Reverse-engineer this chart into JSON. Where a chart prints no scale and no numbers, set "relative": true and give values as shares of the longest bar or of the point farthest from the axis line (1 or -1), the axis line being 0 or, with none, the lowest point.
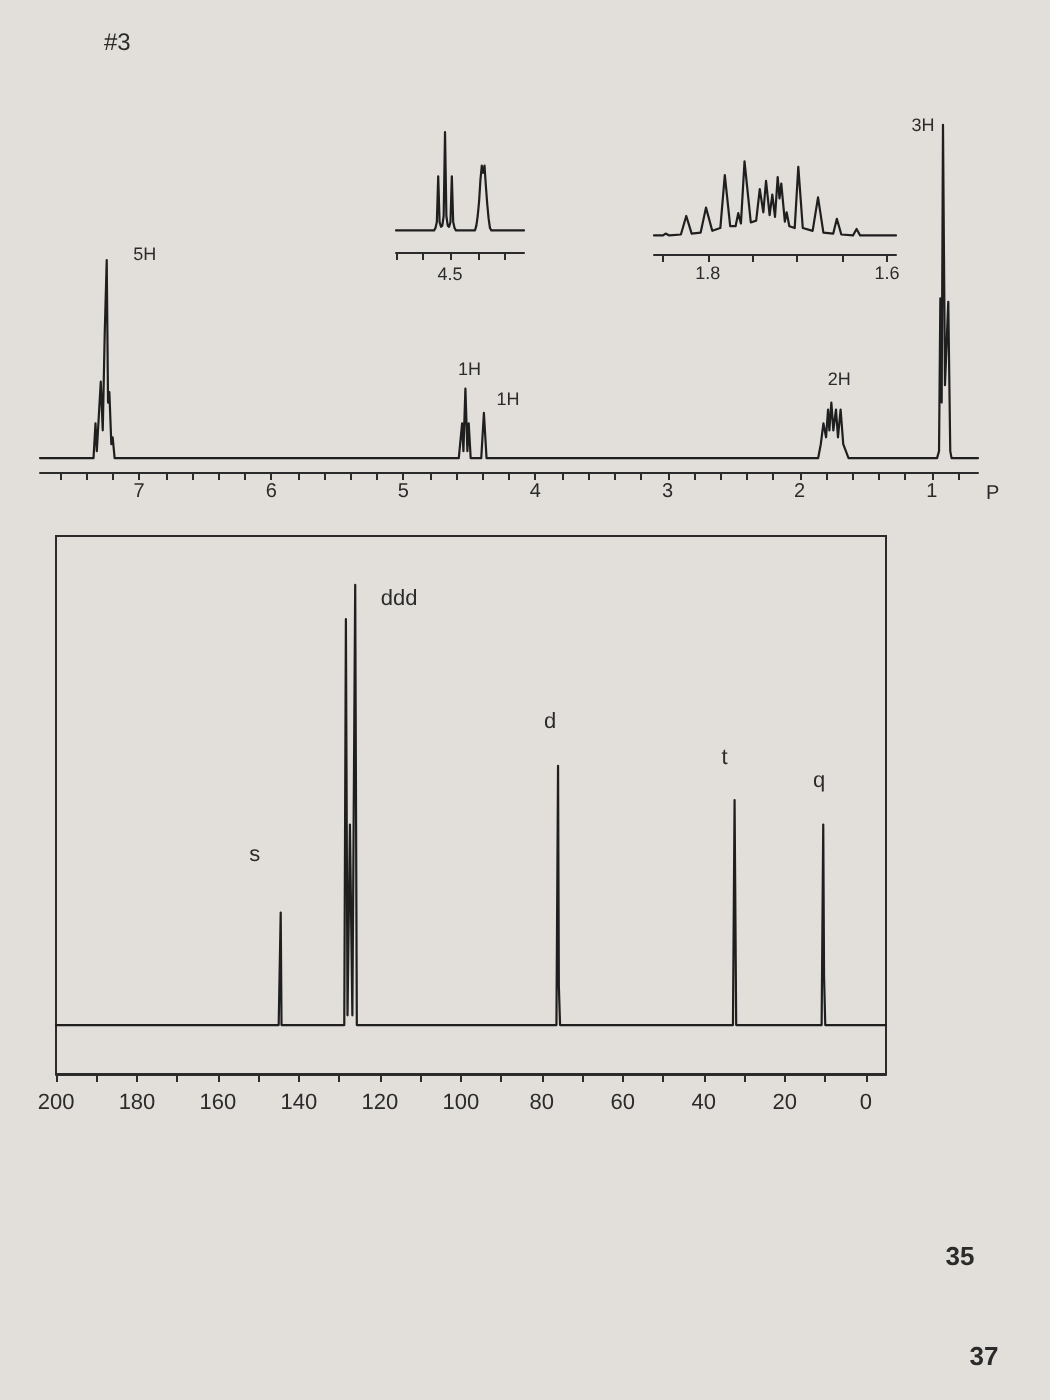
{
  "chart_data": [
    {
      "type": "line",
      "title": "#3",
      "relative": true,
      "marker": "none",
      "xlabel": "P",
      "xlim": [
        7.75,
        0.65
      ],
      "xticks": [
        {
          "value": 7.6,
          "label": null
        },
        {
          "value": 7.4,
          "label": null
        },
        {
          "value": 7.2,
          "label": null
        },
        7,
        {
          "value": 6.8,
          "label": null
        },
        {
          "value": 6.6,
          "label": null
        },
        {
          "value": 6.4,
          "label": null
        },
        {
          "value": 6.2,
          "label": null
        },
        6,
        {
          "value": 5.8,
          "label": null
        },
        {
          "value": 5.6,
          "label": null
        },
        {
          "value": 5.4,
          "label": null
        },
        {
          "value": 5.2,
          "label": null
        },
        5,
        {
          "value": 4.8,
          "label": null
        },
        {
          "value": 4.6,
          "label": null
        },
        {
          "value": 4.4,
          "label": null
        },
        {
          "value": 4.2,
          "label": null
        },
        4,
        {
          "value": 3.8,
          "label": null
        },
        {
          "value": 3.6,
          "label": null
        },
        {
          "value": 3.4,
          "label": null
        },
        {
          "value": 3.2,
          "label": null
        },
        3,
        {
          "value": 2.8,
          "label": null
        },
        {
          "value": 2.6,
          "label": null
        },
        {
          "value": 2.4,
          "label": null
        },
        {
          "value": 2.2,
          "label": null
        },
        2,
        {
          "value": 1.8,
          "label": null
        },
        {
          "value": 1.6,
          "label": null
        },
        {
          "value": 1.4,
          "label": null
        },
        {
          "value": 1.2,
          "label": null
        },
        1,
        {
          "value": 0.8,
          "label": null
        }
      ],
      "x": [
        7.75,
        7.345,
        7.33,
        7.32,
        7.29,
        7.275,
        7.26,
        7.245,
        7.235,
        7.225,
        7.21,
        7.2,
        7.185,
        4.58,
        4.555,
        4.545,
        4.53,
        4.515,
        4.505,
        4.49,
        4.41,
        4.39,
        4.37,
        1.86,
        1.84,
        1.82,
        1.8,
        1.785,
        1.775,
        1.76,
        1.745,
        1.725,
        1.71,
        1.69,
        1.67,
        1.65,
        1.63,
        0.96,
        0.945,
        0.935,
        0.925,
        0.915,
        0.9,
        0.875,
        0.86,
        0.85,
        0.65
      ],
      "series": [
        {
          "color": "#1f1f1f",
          "values": [
            0.04,
            0.04,
            0.14,
            0.06,
            0.26,
            0.12,
            0.4,
            0.61,
            0.2,
            0.23,
            0.08,
            0.1,
            0.04,
            0.04,
            0.14,
            0.06,
            0.24,
            0.06,
            0.14,
            0.04,
            0.04,
            0.17,
            0.04,
            0.04,
            0.08,
            0.14,
            0.1,
            0.18,
            0.12,
            0.2,
            0.12,
            0.18,
            0.1,
            0.18,
            0.08,
            0.06,
            0.04,
            0.04,
            0.06,
            0.5,
            0.2,
            1,
            0.25,
            0.49,
            0.06,
            0.04,
            0.04
          ]
        }
      ],
      "annotations": [
        {
          "text": "5H",
          "x": 7.245,
          "y": 0.61
        },
        {
          "text": "1H",
          "x": 4.53,
          "y": 0.24
        },
        {
          "text": "1H",
          "x": 4.39,
          "y": 0.17
        },
        {
          "text": "2H",
          "x": 1.76,
          "y": 0.2
        },
        {
          "text": "3H",
          "x": 0.915,
          "y": 1
        }
      ]
    },
    {
      "type": "line",
      "relative": true,
      "marker": "none",
      "categories": [
        null,
        null,
        null,
        null,
        null,
        null,
        null,
        null,
        null,
        null,
        null,
        null,
        null,
        null,
        null,
        null,
        null,
        null,
        null,
        null,
        null,
        null,
        null,
        null,
        null,
        null,
        null,
        null,
        null,
        null,
        null,
        null,
        null,
        null,
        null,
        null,
        null,
        null,
        null,
        null,
        null,
        null,
        null,
        null,
        null,
        null,
        null,
        null,
        null,
        null,
        null,
        null,
        null,
        null,
        null,
        null,
        null,
        null,
        null,
        null,
        null,
        null,
        null,
        null,
        null,
        null,
        null,
        null,
        null,
        null,
        null,
        null,
        null,
        null,
        null,
        null,
        null,
        null,
        null,
        null,
        null,
        null,
        null,
        null,
        null,
        null,
        null,
        null,
        null,
        null,
        null,
        null,
        null,
        null,
        null
      ],
      "series": [
        {
          "color": "#1f1f1f",
          "values": [
            0.18,
            0.18,
            0.18,
            0.18,
            0.18,
            0.18,
            0.18,
            0.18,
            0.18,
            0.18,
            0.18,
            0.18,
            0.18,
            0.18,
            0.18,
            0.18,
            0.18,
            0.18,
            0.18,
            0.18,
            0.18,
            0.18,
            0.18,
            0.18,
            0.18,
            0.18,
            0.18,
            0.18,
            0.18,
            0.2,
            0.25,
            0.63,
            0.25,
            0.21,
            0.22,
            0.3,
            1,
            0.3,
            0.22,
            0.21,
            0.25,
            0.63,
            0.25,
            0.2,
            0.18,
            0.18,
            0.18,
            0.18,
            0.18,
            0.18,
            0.18,
            0.18,
            0.18,
            0.18,
            0.18,
            0.18,
            0.18,
            0.18,
            0.18,
            0.22,
            0.3,
            0.42,
            0.6,
            0.72,
            0.66,
            0.72,
            0.55,
            0.4,
            0.28,
            0.2,
            0.18,
            0.18,
            0.18,
            0.18,
            0.18,
            0.18,
            0.18,
            0.18,
            0.18,
            0.18,
            0.18,
            0.18,
            0.18,
            0.18,
            0.18,
            0.18,
            0.18,
            0.18,
            0.18,
            0.18,
            0.18,
            0.18,
            0.18,
            0.18,
            0.18
          ]
        }
      ],
      "annotations": [
        "4.5"
      ]
    },
    {
      "type": "line",
      "relative": true,
      "marker": "none",
      "xlim": [
        1.86,
        1.59
      ],
      "xticks": [
        {
          "value": 1.85,
          "label": null
        },
        1.8,
        {
          "value": 1.75,
          "label": null
        },
        {
          "value": 1.7,
          "label": null
        },
        {
          "value": 1.65,
          "label": null
        },
        1.6
      ],
      "x": [
        1.86,
        1.85,
        1.847,
        1.843,
        1.83,
        1.824,
        1.818,
        1.808,
        1.802,
        1.795,
        1.786,
        1.781,
        1.775,
        1.769,
        1.766,
        1.763,
        1.759,
        1.752,
        1.746,
        1.742,
        1.738,
        1.735,
        1.731,
        1.728,
        1.725,
        1.722,
        1.72,
        1.718,
        1.714,
        1.712,
        1.709,
        1.703,
        1.699,
        1.694,
        1.683,
        1.677,
        1.671,
        1.66,
        1.656,
        1.651,
        1.638,
        1.634,
        1.63,
        1.59
      ],
      "series": [
        {
          "color": "#1f1f1f",
          "values": [
            0.2,
            0.2,
            0.22,
            0.2,
            0.21,
            0.41,
            0.22,
            0.23,
            0.5,
            0.25,
            0.28,
            0.85,
            0.3,
            0.3,
            0.44,
            0.33,
            1,
            0.34,
            0.36,
            0.7,
            0.45,
            0.79,
            0.42,
            0.64,
            0.4,
            0.83,
            0.6,
            0.76,
            0.35,
            0.45,
            0.3,
            0.28,
            0.94,
            0.28,
            0.25,
            0.61,
            0.23,
            0.22,
            0.38,
            0.21,
            0.2,
            0.27,
            0.2,
            0.2
          ]
        }
      ]
    },
    {
      "type": "line",
      "relative": true,
      "marker": "none",
      "xlim": [
        200,
        -5
      ],
      "xticks": [
        200,
        {
          "value": 190,
          "label": null
        },
        180,
        {
          "value": 170,
          "label": null
        },
        160,
        {
          "value": 150,
          "label": null
        },
        140,
        {
          "value": 130,
          "label": null
        },
        120,
        {
          "value": 110,
          "label": null
        },
        100,
        {
          "value": 90,
          "label": null
        },
        80,
        {
          "value": 70,
          "label": null
        },
        60,
        {
          "value": 50,
          "label": null
        },
        40,
        {
          "value": 30,
          "label": null
        },
        20,
        {
          "value": 10,
          "label": null
        },
        0
      ],
      "x": [
        200,
        145,
        144.5,
        144.3,
        128.8,
        128.4,
        128,
        127.4,
        126.8,
        126.1,
        125.7,
        76.4,
        76,
        75.8,
        75.5,
        32.8,
        32.4,
        32,
        10.9,
        10.5,
        10.3,
        10,
        -5
      ],
      "series": [
        {
          "color": "#1f1f1f",
          "values": [
            0.1,
            0.1,
            0.33,
            0.1,
            0.1,
            0.93,
            0.12,
            0.51,
            0.12,
            1,
            0.1,
            0.1,
            0.63,
            0.18,
            0.1,
            0.1,
            0.56,
            0.1,
            0.1,
            0.51,
            0.2,
            0.1,
            0.1
          ]
        }
      ],
      "annotations": [
        {
          "text": "s",
          "x": 144.5,
          "y": 0.33
        },
        {
          "text": "ddd",
          "x": 126.1,
          "y": 1
        },
        {
          "text": "d",
          "x": 76,
          "y": 0.63
        },
        {
          "text": "t",
          "x": 32.4,
          "y": 0.56
        },
        {
          "text": "q",
          "x": 10.5,
          "y": 0.51
        },
        "35",
        "37"
      ]
    }
  ]
}
